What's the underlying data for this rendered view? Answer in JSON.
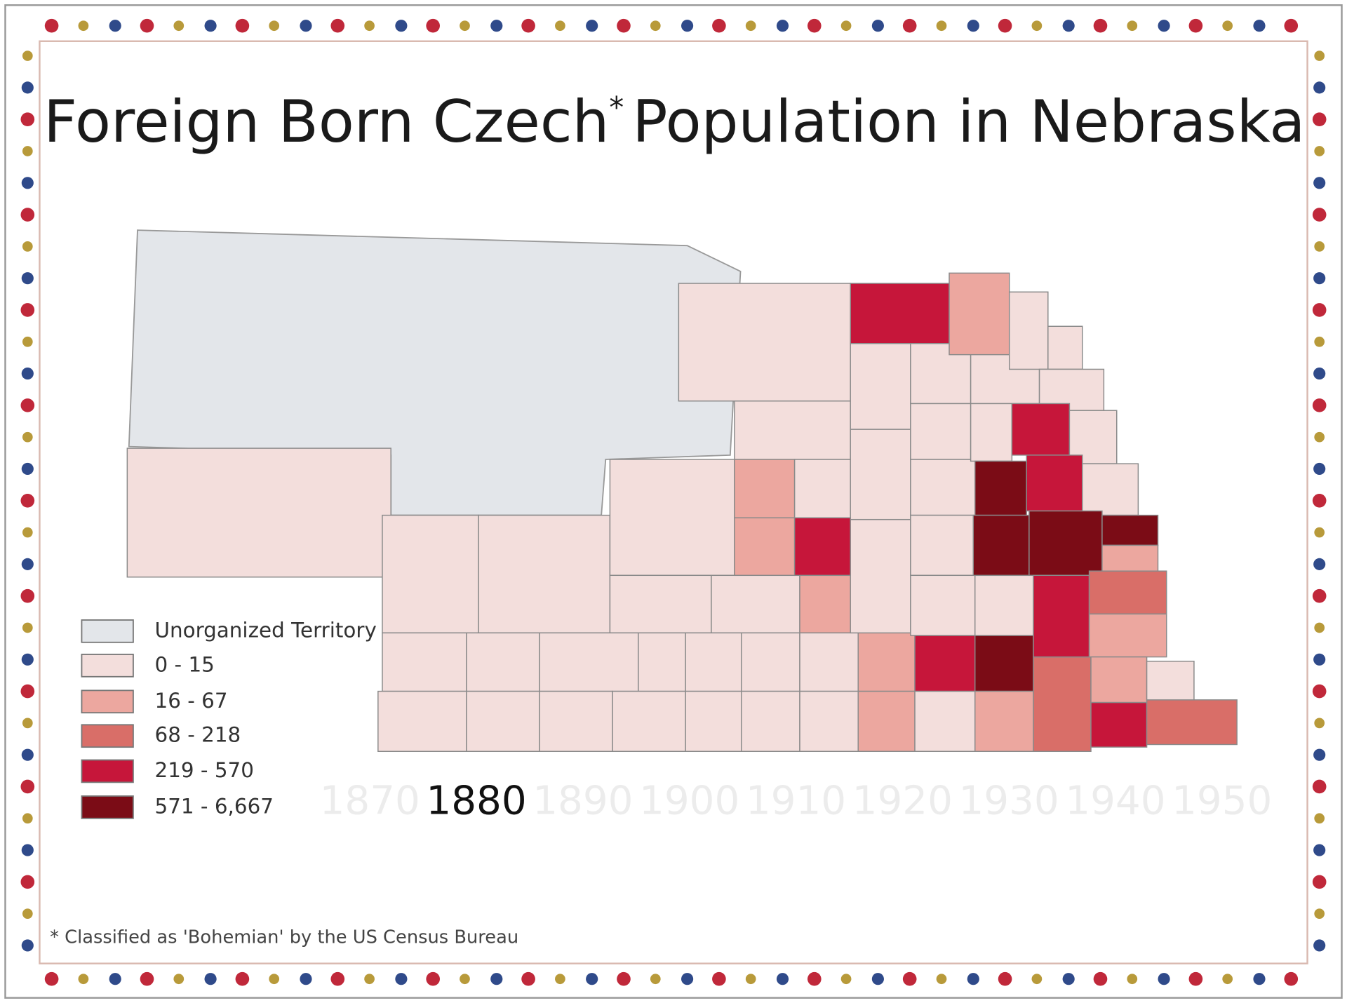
{
  "title": {
    "before": "Foreign Born Czech",
    "marker": "*",
    "after": "Population in Nebraska"
  },
  "legend": [
    {
      "label": "Unorganized Territory",
      "color": "#e3e6ea"
    },
    {
      "label": "0 - 15",
      "color": "#f3dedc"
    },
    {
      "label": "16 - 67",
      "color": "#eca79f"
    },
    {
      "label": "68 - 218",
      "color": "#d96e68"
    },
    {
      "label": "219 - 570",
      "color": "#c6163a"
    },
    {
      "label": "571 - 6,667",
      "color": "#7b0c16"
    }
  ],
  "timeline": [
    {
      "label": "1870",
      "active": false
    },
    {
      "label": "1880",
      "active": true
    },
    {
      "label": "1890",
      "active": false
    },
    {
      "label": "1900",
      "active": false
    },
    {
      "label": "1910",
      "active": false
    },
    {
      "label": "1920",
      "active": false
    },
    {
      "label": "1930",
      "active": false
    },
    {
      "label": "1940",
      "active": false
    },
    {
      "label": "1950",
      "active": false
    }
  ],
  "footnote": "* Classified as 'Bohemian' by the US Census Bureau"
}
